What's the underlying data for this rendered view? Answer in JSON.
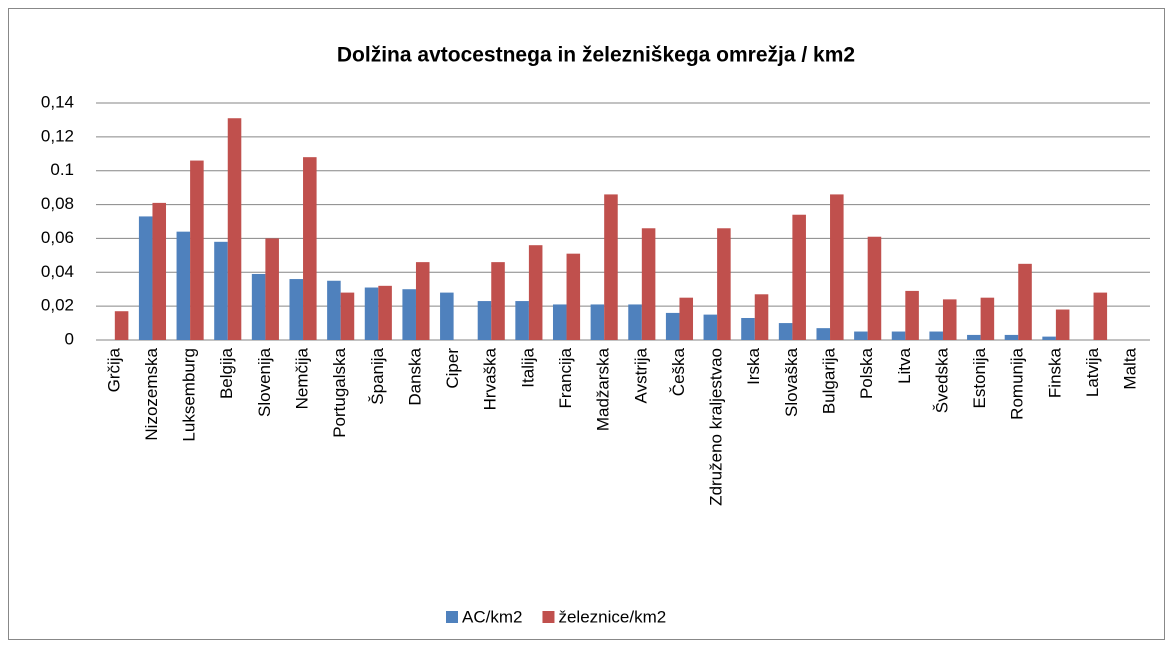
{
  "chart_data": {
    "type": "bar",
    "title": "Dolžina avtocestnega in železniškega omrežja / km2",
    "categories": [
      "Grčija",
      "Nizozemska",
      "Luksemburg",
      "Belgija",
      "Slovenija",
      "Nemčija",
      "Portugalska",
      "Španija",
      "Danska",
      "Ciper",
      "Hrvaška",
      "Italija",
      "Francija",
      "Madžarska",
      "Avstrija",
      "Češka",
      "Združeno kraljestvao",
      "Irska",
      "Slovaška",
      "Bulgarija",
      "Polska",
      "Litva",
      "Švedska",
      "Estonija",
      "Romunija",
      "Finska",
      "Latvija",
      "Malta"
    ],
    "series": [
      {
        "name": "AC/km2",
        "color": "#4f81bd",
        "values": [
          null,
          0.073,
          0.064,
          0.058,
          0.039,
          0.036,
          0.035,
          0.031,
          0.03,
          0.028,
          0.023,
          0.023,
          0.021,
          0.021,
          0.021,
          0.016,
          0.015,
          0.013,
          0.01,
          0.007,
          0.005,
          0.005,
          0.005,
          0.003,
          0.003,
          0.002,
          null,
          null
        ]
      },
      {
        "name": "železnice/km2",
        "color": "#c0504d",
        "values": [
          0.017,
          0.081,
          0.106,
          0.131,
          0.06,
          0.108,
          0.028,
          0.032,
          0.046,
          null,
          0.046,
          0.056,
          0.051,
          0.086,
          0.066,
          0.025,
          0.066,
          0.027,
          0.074,
          0.086,
          0.061,
          0.029,
          0.024,
          0.025,
          0.045,
          0.018,
          0.028,
          null
        ]
      }
    ],
    "ylim": [
      0,
      0.14
    ],
    "yticks": [
      0,
      {
        "value": 0.02,
        "label": "0,02"
      },
      {
        "value": 0.04,
        "label": "0,04"
      },
      {
        "value": 0.06,
        "label": "0,06"
      },
      {
        "value": 0.08,
        "label": "0,08"
      },
      0.1,
      {
        "value": 0.12,
        "label": "0,12"
      },
      {
        "value": 0.14,
        "label": "0,14"
      }
    ],
    "grid": true,
    "legend": "bottom"
  }
}
